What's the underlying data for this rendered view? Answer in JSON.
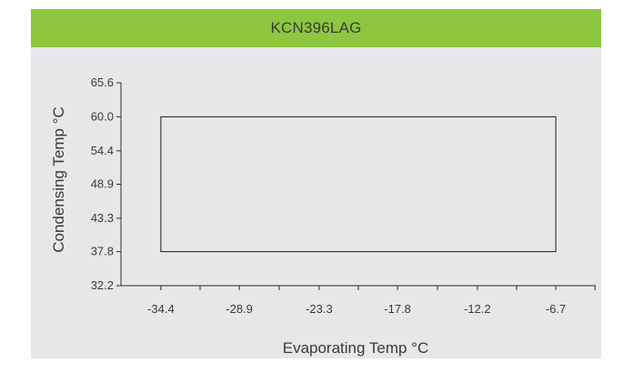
{
  "chart_data": {
    "type": "area",
    "title": "KCN396LAG",
    "xlabel": "Evaporating Temp °C",
    "ylabel": "Condensing Temp °C",
    "x_ticks": [
      -34.4,
      -28.9,
      -23.3,
      -17.8,
      -12.2,
      -6.7
    ],
    "x_tick_labels": [
      "-34.4",
      "-28.9",
      "-23.3",
      "-17.8",
      "-12.2",
      "-6.7"
    ],
    "y_ticks": [
      32.2,
      37.8,
      43.3,
      48.9,
      54.4,
      60.0,
      65.6
    ],
    "y_tick_labels": [
      "32.2",
      "37.8",
      "43.3",
      "48.9",
      "54.4",
      "60.0",
      "65.6"
    ],
    "xlim": [
      -37.2,
      -3.9
    ],
    "ylim": [
      32.2,
      65.6
    ],
    "series": [
      {
        "shape": "envelope",
        "points": [
          [
            -34.4,
            37.8
          ],
          [
            -6.7,
            37.8
          ],
          [
            -6.7,
            60.0
          ],
          [
            -34.4,
            60.0
          ]
        ]
      }
    ],
    "grid": false,
    "colors": {
      "title_bar": "#8dc63f",
      "panel_bg": "#e6e7e8",
      "text": "#3a3a3a",
      "envelope_stroke": "#1a1a1a"
    }
  }
}
